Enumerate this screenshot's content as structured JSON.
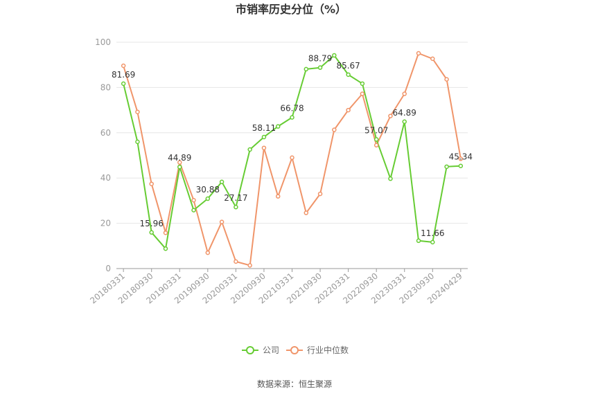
{
  "chart_data": {
    "type": "line",
    "title": "市销率历史分位（%）",
    "xlabel": "",
    "ylabel": "",
    "ylim": [
      0,
      100
    ],
    "yticks": [
      0,
      20,
      40,
      60,
      80,
      100
    ],
    "grid": true,
    "legend_position": "bottom",
    "x": [
      "20180331",
      "20180630",
      "20180930",
      "20181231",
      "20190331",
      "20190630",
      "20190930",
      "20191231",
      "20200331",
      "20200630",
      "20200930",
      "20201231",
      "20210331",
      "20210630",
      "20210930",
      "20211231",
      "20220331",
      "20220630",
      "20220930",
      "20221231",
      "20230331",
      "20230630",
      "20230930",
      "20231231",
      "20240429"
    ],
    "x_tick_labels": [
      "20180331",
      "20180930",
      "20190331",
      "20190930",
      "20200331",
      "20200930",
      "20210331",
      "20210930",
      "20220331",
      "20220930",
      "20230331",
      "20230930",
      "20240429"
    ],
    "series": [
      {
        "name": "公司",
        "color": "#66cc33",
        "values": [
          81.69,
          56,
          15.96,
          8.8,
          44.89,
          25.8,
          30.88,
          38.3,
          27.17,
          52.6,
          58.11,
          62.8,
          66.78,
          88.1,
          88.79,
          94.2,
          85.67,
          81.7,
          57.07,
          39.7,
          64.89,
          12.3,
          11.66,
          45.0,
          45.34
        ],
        "labels": [
          "81.69",
          "",
          "15.96",
          "",
          "44.89",
          "",
          "30.88",
          "",
          "27.17",
          "",
          "58.11",
          "",
          "66.78",
          "",
          "88.79",
          "",
          "85.67",
          "",
          "57.07",
          "",
          "64.89",
          "",
          "11.66",
          "",
          "45.34"
        ]
      },
      {
        "name": "行业中位数",
        "color": "#f0956a",
        "values": [
          89.6,
          69.2,
          37.4,
          15.8,
          46.9,
          30.2,
          7.0,
          20.6,
          3.1,
          1.4,
          53.3,
          31.9,
          49.0,
          24.6,
          33.0,
          61.3,
          70.0,
          77.2,
          54.5,
          67.4,
          77.2,
          95.1,
          92.7,
          83.6,
          48.5
        ]
      }
    ],
    "source": "数据来源：恒生聚源"
  }
}
